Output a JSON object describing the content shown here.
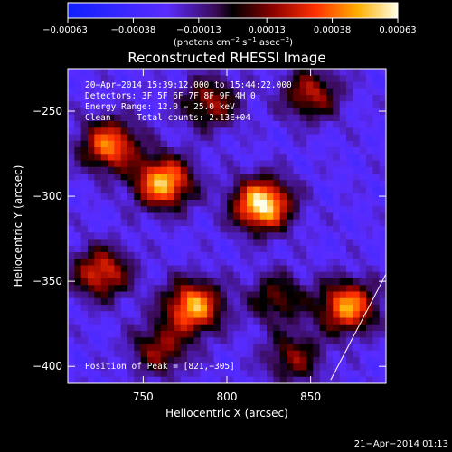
{
  "chart_data": {
    "type": "heatmap",
    "title": "Reconstructed RHESSI Image",
    "xlabel": "Heliocentric X (arcsec)",
    "ylabel": "Heliocentric Y (arcsec)",
    "xlim": [
      705,
      895
    ],
    "ylim": [
      -410,
      -225
    ],
    "x_ticks": [
      750,
      800,
      850
    ],
    "x_tick_labels": [
      "750",
      "800",
      "850"
    ],
    "y_ticks": [
      -250,
      -300,
      -350,
      -400
    ],
    "y_tick_labels": [
      "−250",
      "−300",
      "−350",
      "−400"
    ],
    "colorbar": {
      "range": [
        -0.00063,
        0.00063
      ],
      "tick_values": [
        -0.00063,
        -0.00038,
        -0.00013,
        0.00013,
        0.00038,
        0.00063
      ],
      "tick_labels": [
        "−0.00063",
        "−0.00038",
        "−0.00013",
        "0.00013",
        "0.00038",
        "0.00063"
      ],
      "unit_base": "(photons cm",
      "unit_exp1": "−2",
      "unit_mid": " s",
      "unit_exp2": "−1",
      "unit_end": " asec",
      "unit_exp3": "−2",
      "unit_close": ")"
    },
    "annotations": {
      "time": "20−Apr−2014 15:39:12.000 to 15:44:22.000",
      "detectors": "Detectors: 3F 5F 6F 7F 8F 9F 4H 0",
      "energy": "Energy Range: 12.0 − 25.0 keV",
      "method": "Clean     Total counts: 2.13E+04",
      "peak": "Position of Peak = [821,−305]"
    },
    "footer_timestamp": "21−Apr−2014 01:13",
    "peak_position": [
      821,
      -305
    ],
    "sources": [
      {
        "x": 821,
        "y": -305,
        "value": 0.00063
      },
      {
        "x": 762,
        "y": -292,
        "value": 0.00052
      },
      {
        "x": 730,
        "y": -270,
        "value": 0.0004
      },
      {
        "x": 780,
        "y": -365,
        "value": 0.00048
      },
      {
        "x": 872,
        "y": -365,
        "value": 0.00045
      },
      {
        "x": 725,
        "y": -345,
        "value": 0.0003
      },
      {
        "x": 850,
        "y": -240,
        "value": 0.0002
      },
      {
        "x": 790,
        "y": -245,
        "value": 0.00018
      },
      {
        "x": 830,
        "y": -360,
        "value": 0.0001
      },
      {
        "x": 840,
        "y": -395,
        "value": 0.00012
      },
      {
        "x": 760,
        "y": -390,
        "value": 0.00015
      }
    ],
    "limb_line": [
      [
        862,
        -408
      ],
      [
        897,
        -342
      ]
    ]
  }
}
